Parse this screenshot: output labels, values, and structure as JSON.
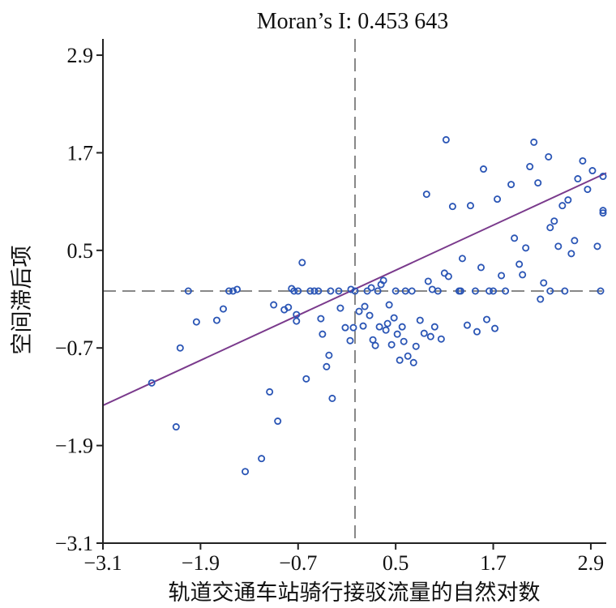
{
  "chart_data": {
    "type": "scatter",
    "title": "Moran’s I: 0.453 643",
    "xlabel": "轨道交通车站骑行接驳流量的自然对数",
    "ylabel": "空间滞后项",
    "xlim": [
      -3.1,
      3.1
    ],
    "ylim": [
      -3.1,
      3.1
    ],
    "xticks": [
      "−3.1",
      "−1.9",
      "−0.7",
      "0.5",
      "1.7",
      "2.9"
    ],
    "yticks": [
      "−3.1",
      "−1.9",
      "−0.7",
      "0.5",
      "1.7",
      "2.9"
    ],
    "mean_x": 0,
    "mean_y": 0,
    "fit_line": {
      "slope": 0.4536,
      "intercept": 0
    },
    "points": [
      [
        -2.5,
        -1.13
      ],
      [
        -2.2,
        -1.67
      ],
      [
        -2.15,
        -0.7
      ],
      [
        -2.05,
        0.0
      ],
      [
        -1.95,
        -0.38
      ],
      [
        -1.7,
        -0.36
      ],
      [
        -1.62,
        -0.22
      ],
      [
        -1.55,
        0.0
      ],
      [
        -1.5,
        0.0
      ],
      [
        -1.45,
        0.02
      ],
      [
        -1.35,
        -2.22
      ],
      [
        -1.15,
        -2.06
      ],
      [
        -1.05,
        -1.24
      ],
      [
        -1.0,
        -0.17
      ],
      [
        -0.95,
        -1.6
      ],
      [
        -0.87,
        -0.23
      ],
      [
        -0.82,
        -0.2
      ],
      [
        -0.78,
        0.03
      ],
      [
        -0.75,
        0.0
      ],
      [
        -0.72,
        -0.29
      ],
      [
        -0.72,
        -0.37
      ],
      [
        -0.7,
        0.0
      ],
      [
        -0.65,
        0.35
      ],
      [
        -0.6,
        -1.08
      ],
      [
        -0.55,
        0.0
      ],
      [
        -0.5,
        0.0
      ],
      [
        -0.45,
        0.0
      ],
      [
        -0.42,
        -0.34
      ],
      [
        -0.4,
        -0.53
      ],
      [
        -0.35,
        -0.93
      ],
      [
        -0.3,
        0.0
      ],
      [
        -0.32,
        -0.79
      ],
      [
        -0.28,
        -1.32
      ],
      [
        -0.2,
        0.0
      ],
      [
        -0.18,
        -0.21
      ],
      [
        -0.12,
        -0.45
      ],
      [
        -0.06,
        -0.61
      ],
      [
        -0.05,
        0.02
      ],
      [
        -0.02,
        -0.45
      ],
      [
        0.0,
        0.0
      ],
      [
        0.05,
        -0.25
      ],
      [
        0.1,
        -0.43
      ],
      [
        0.12,
        -0.19
      ],
      [
        0.15,
        0.0
      ],
      [
        0.18,
        -0.3
      ],
      [
        0.2,
        0.04
      ],
      [
        0.22,
        -0.6
      ],
      [
        0.25,
        -0.67
      ],
      [
        0.28,
        0.0
      ],
      [
        0.3,
        -0.44
      ],
      [
        0.32,
        0.08
      ],
      [
        0.35,
        0.13
      ],
      [
        0.38,
        -0.48
      ],
      [
        0.4,
        -0.4
      ],
      [
        0.42,
        -0.17
      ],
      [
        0.45,
        -0.66
      ],
      [
        0.48,
        -0.33
      ],
      [
        0.5,
        0.0
      ],
      [
        0.52,
        -0.53
      ],
      [
        0.55,
        -0.85
      ],
      [
        0.58,
        -0.44
      ],
      [
        0.6,
        -0.62
      ],
      [
        0.62,
        0.0
      ],
      [
        0.65,
        -0.8
      ],
      [
        0.7,
        0.0
      ],
      [
        0.72,
        -0.88
      ],
      [
        0.75,
        -0.68
      ],
      [
        0.8,
        -0.36
      ],
      [
        0.85,
        -0.52
      ],
      [
        0.88,
        1.19
      ],
      [
        0.9,
        0.12
      ],
      [
        0.93,
        -0.56
      ],
      [
        0.95,
        0.02
      ],
      [
        0.98,
        -0.44
      ],
      [
        1.02,
        0.0
      ],
      [
        1.06,
        -0.59
      ],
      [
        1.1,
        0.22
      ],
      [
        1.12,
        1.86
      ],
      [
        1.15,
        0.18
      ],
      [
        1.2,
        1.04
      ],
      [
        1.28,
        0.0
      ],
      [
        1.32,
        0.4
      ],
      [
        1.38,
        -0.42
      ],
      [
        1.42,
        1.05
      ],
      [
        1.48,
        0.0
      ],
      [
        1.5,
        -0.5
      ],
      [
        1.55,
        0.29
      ],
      [
        1.58,
        1.5
      ],
      [
        1.62,
        -0.35
      ],
      [
        1.65,
        0.0
      ],
      [
        1.7,
        0.0
      ],
      [
        1.72,
        -0.46
      ],
      [
        1.75,
        1.13
      ],
      [
        1.8,
        0.19
      ],
      [
        1.85,
        0.0
      ],
      [
        1.92,
        1.31
      ],
      [
        1.96,
        0.65
      ],
      [
        2.02,
        0.33
      ],
      [
        2.06,
        0.2
      ],
      [
        2.1,
        0.53
      ],
      [
        2.15,
        1.53
      ],
      [
        2.2,
        1.83
      ],
      [
        2.25,
        1.33
      ],
      [
        2.28,
        -0.1
      ],
      [
        2.32,
        0.1
      ],
      [
        2.38,
        1.65
      ],
      [
        2.4,
        0.78
      ],
      [
        2.45,
        0.86
      ],
      [
        2.5,
        0.55
      ],
      [
        2.55,
        1.05
      ],
      [
        2.58,
        0.0
      ],
      [
        2.62,
        1.12
      ],
      [
        2.66,
        0.46
      ],
      [
        2.7,
        0.62
      ],
      [
        2.74,
        1.38
      ],
      [
        2.8,
        1.6
      ],
      [
        2.86,
        1.25
      ],
      [
        2.92,
        1.48
      ],
      [
        2.98,
        0.55
      ],
      [
        3.02,
        0.0
      ],
      [
        3.08,
        0.99
      ],
      [
        3.1,
        0.96
      ],
      [
        3.2,
        1.41
      ],
      [
        2.4,
        0.0
      ],
      [
        1.3,
        0.0
      ]
    ]
  }
}
